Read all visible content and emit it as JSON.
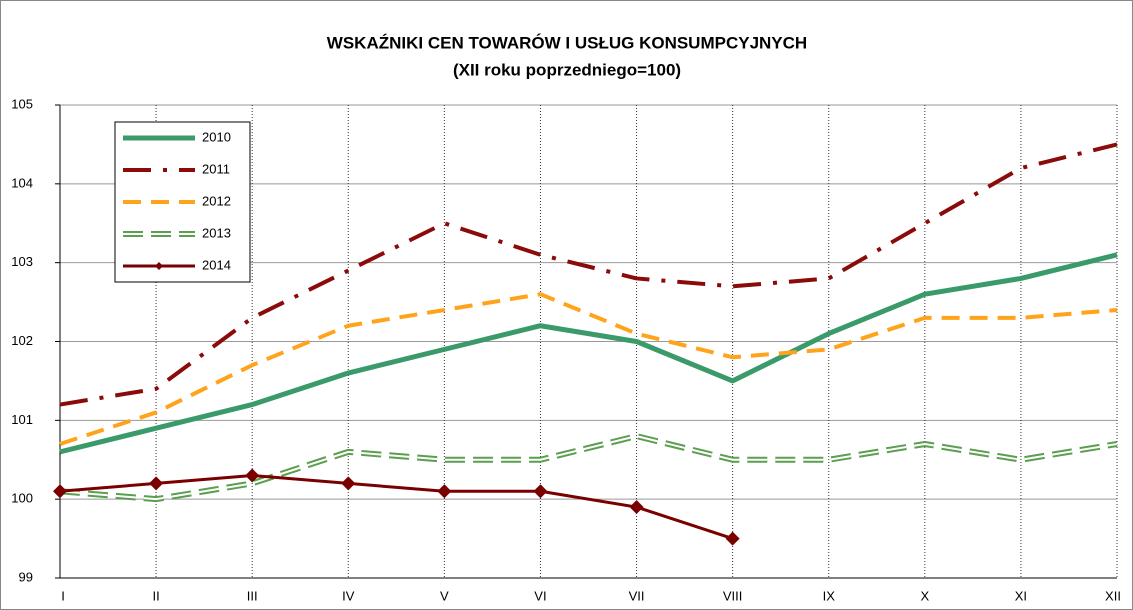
{
  "chart_data": {
    "type": "line",
    "title": "WSKAŹNIKI CEN TOWARÓW I USŁUG KONSUMPCYJNYCH",
    "subtitle": "(XII roku poprzedniego=100)",
    "categories": [
      "I",
      "II",
      "III",
      "IV",
      "V",
      "VI",
      "VII",
      "VIII",
      "IX",
      "X",
      "XI",
      "XII"
    ],
    "ylim": [
      99,
      105
    ],
    "yticks": [
      99,
      100,
      101,
      102,
      103,
      104,
      105
    ],
    "grid": true,
    "legend": "upper left",
    "series": [
      {
        "name": "2010",
        "color": "#3a9a6a",
        "style": "solid",
        "values": [
          100.6,
          100.9,
          101.2,
          101.6,
          101.9,
          102.2,
          102.0,
          101.5,
          102.1,
          102.6,
          102.8,
          103.1
        ]
      },
      {
        "name": "2011",
        "color": "#8b0a0a",
        "style": "dashdot",
        "values": [
          101.2,
          101.4,
          102.3,
          102.9,
          103.5,
          103.1,
          102.8,
          102.7,
          102.8,
          103.5,
          104.2,
          104.5
        ]
      },
      {
        "name": "2012",
        "color": "#ffa31a",
        "style": "dashed",
        "values": [
          100.7,
          101.1,
          101.7,
          102.2,
          102.4,
          102.6,
          102.1,
          101.8,
          101.9,
          102.3,
          102.3,
          102.4
        ]
      },
      {
        "name": "2013",
        "color": "#5a9e4e",
        "style": "double-dashed",
        "values": [
          100.1,
          100.0,
          100.2,
          100.6,
          100.5,
          100.5,
          100.8,
          100.5,
          100.5,
          100.7,
          100.5,
          100.7
        ]
      },
      {
        "name": "2014",
        "color": "#7a0000",
        "style": "solid-diamond",
        "values": [
          100.1,
          100.2,
          100.3,
          100.2,
          100.1,
          100.1,
          99.9,
          99.5,
          null,
          null,
          null,
          null
        ]
      }
    ]
  }
}
